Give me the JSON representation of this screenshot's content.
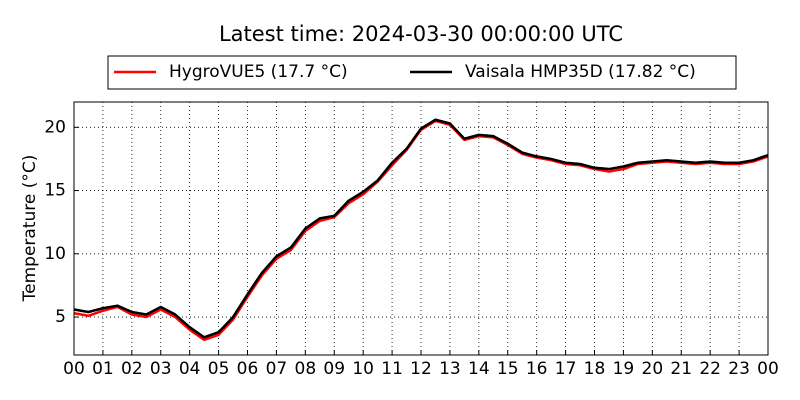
{
  "chart_data": {
    "type": "line",
    "title": "Latest time: 2024-03-30 00:00:00 UTC",
    "ylabel": "Temperature (°C)",
    "x": [
      0,
      0.5,
      1,
      1.5,
      2,
      2.5,
      3,
      3.5,
      4,
      4.5,
      5,
      5.5,
      6,
      6.5,
      7,
      7.5,
      8,
      8.5,
      9,
      9.5,
      10,
      10.5,
      11,
      11.5,
      12,
      12.5,
      13,
      13.5,
      14,
      14.5,
      15,
      15.5,
      16,
      16.5,
      17,
      17.5,
      18,
      18.5,
      19,
      19.5,
      20,
      20.5,
      21,
      21.5,
      22,
      22.5,
      23,
      23.5,
      24
    ],
    "series": [
      {
        "name": "HygroVUE5 (17.7 °C)",
        "color": "#ff0000",
        "values": [
          5.3,
          5.1,
          5.5,
          5.8,
          5.2,
          5.0,
          5.6,
          5.0,
          4.0,
          3.2,
          3.6,
          4.8,
          6.6,
          8.3,
          9.6,
          10.3,
          11.8,
          12.6,
          12.9,
          14.0,
          14.7,
          15.7,
          17.0,
          18.2,
          19.8,
          20.5,
          20.2,
          19.0,
          19.3,
          19.2,
          18.6,
          17.9,
          17.6,
          17.4,
          17.1,
          17.0,
          16.7,
          16.5,
          16.7,
          17.1,
          17.2,
          17.3,
          17.2,
          17.1,
          17.2,
          17.1,
          17.1,
          17.3,
          17.7
        ]
      },
      {
        "name": "Vaisala HMP35D (17.82 °C)",
        "color": "#000000",
        "values": [
          5.6,
          5.4,
          5.7,
          5.9,
          5.4,
          5.2,
          5.8,
          5.2,
          4.2,
          3.4,
          3.8,
          5.0,
          6.8,
          8.5,
          9.8,
          10.5,
          12.0,
          12.8,
          13.0,
          14.2,
          14.9,
          15.8,
          17.2,
          18.3,
          19.9,
          20.6,
          20.3,
          19.1,
          19.4,
          19.3,
          18.7,
          18.0,
          17.7,
          17.5,
          17.2,
          17.1,
          16.8,
          16.7,
          16.9,
          17.2,
          17.3,
          17.4,
          17.3,
          17.2,
          17.3,
          17.2,
          17.2,
          17.4,
          17.8
        ]
      }
    ],
    "xlim": [
      0,
      24
    ],
    "xticks": [
      {
        "value": 0,
        "label": "00"
      },
      {
        "value": 1,
        "label": "01"
      },
      {
        "value": 2,
        "label": "02"
      },
      {
        "value": 3,
        "label": "03"
      },
      {
        "value": 4,
        "label": "04"
      },
      {
        "value": 5,
        "label": "05"
      },
      {
        "value": 6,
        "label": "06"
      },
      {
        "value": 7,
        "label": "07"
      },
      {
        "value": 8,
        "label": "08"
      },
      {
        "value": 9,
        "label": "09"
      },
      {
        "value": 10,
        "label": "10"
      },
      {
        "value": 11,
        "label": "11"
      },
      {
        "value": 12,
        "label": "12"
      },
      {
        "value": 13,
        "label": "13"
      },
      {
        "value": 14,
        "label": "14"
      },
      {
        "value": 15,
        "label": "15"
      },
      {
        "value": 16,
        "label": "16"
      },
      {
        "value": 17,
        "label": "17"
      },
      {
        "value": 18,
        "label": "18"
      },
      {
        "value": 19,
        "label": "19"
      },
      {
        "value": 20,
        "label": "20"
      },
      {
        "value": 21,
        "label": "21"
      },
      {
        "value": 22,
        "label": "22"
      },
      {
        "value": 23,
        "label": "23"
      },
      {
        "value": 24,
        "label": "00"
      }
    ],
    "ylim": [
      2,
      22
    ],
    "yticks": [
      5,
      10,
      15,
      20
    ],
    "grid": true
  }
}
